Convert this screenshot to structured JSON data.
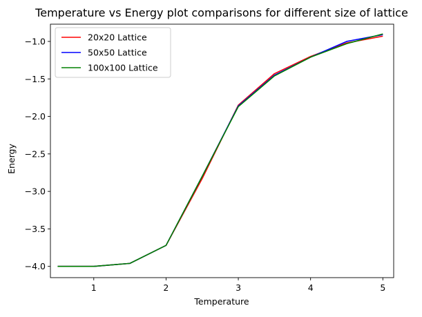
{
  "chart_data": {
    "type": "line",
    "title": "Temperature vs Energy plot comparisons for different size of lattice",
    "xlabel": "Temperature",
    "ylabel": "Energy",
    "xlim": [
      0.4,
      5.15
    ],
    "ylim": [
      -4.15,
      -0.77
    ],
    "xticks": [
      1,
      2,
      3,
      4,
      5
    ],
    "xtick_labels": [
      "1",
      "2",
      "3",
      "4",
      "5"
    ],
    "yticks": [
      -4.0,
      -3.5,
      -3.0,
      -2.5,
      -2.0,
      -1.5,
      -1.0
    ],
    "ytick_labels": [
      "−4.0",
      "−3.5",
      "−3.0",
      "−2.5",
      "−2.0",
      "−1.5",
      "−1.0"
    ],
    "grid": false,
    "legend_position": "upper-left",
    "x": [
      0.5,
      1.0,
      1.5,
      2.0,
      2.5,
      3.0,
      3.5,
      4.0,
      4.5,
      5.0
    ],
    "series": [
      {
        "name": "20x20 Lattice",
        "color": "#ff0000",
        "values": [
          -4.0,
          -4.0,
          -3.96,
          -3.72,
          -2.83,
          -1.85,
          -1.43,
          -1.2,
          -1.02,
          -0.93
        ]
      },
      {
        "name": "50x50 Lattice",
        "color": "#0000ff",
        "values": [
          -4.0,
          -4.0,
          -3.96,
          -3.72,
          -2.8,
          -1.86,
          -1.45,
          -1.21,
          -1.0,
          -0.91
        ]
      },
      {
        "name": "100x100 Lattice",
        "color": "#008000",
        "values": [
          -4.0,
          -4.0,
          -3.96,
          -3.72,
          -2.8,
          -1.87,
          -1.46,
          -1.21,
          -1.03,
          -0.9
        ]
      }
    ]
  }
}
